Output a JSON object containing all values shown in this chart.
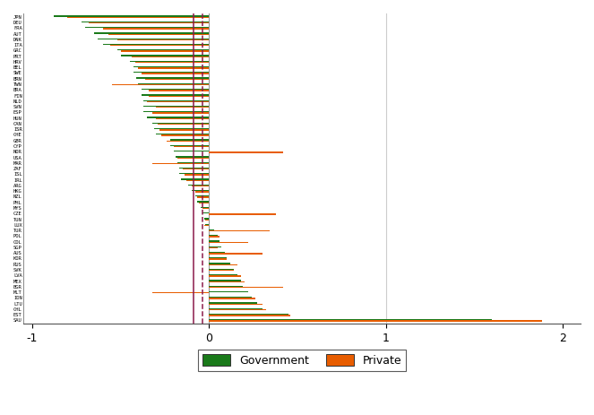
{
  "countries": [
    "JPN",
    "DEU",
    "FRA",
    "AUT",
    "DNK",
    "ITA",
    "GRC",
    "PRT",
    "HRV",
    "BEL",
    "SWE",
    "BRN",
    "TWN",
    "BRA",
    "FIN",
    "NLD",
    "SVN",
    "ESP",
    "HUN",
    "CAN",
    "ISR",
    "CHE",
    "GBR",
    "CYP",
    "NOR",
    "USA",
    "MAR",
    "ZAF",
    "ISL",
    "IRL",
    "ARG",
    "HKG",
    "NZL",
    "PHL",
    "MYS",
    "CZE",
    "TUN",
    "LUX",
    "TUR",
    "POL",
    "COL",
    "SGP",
    "AUS",
    "KOR",
    "RUS",
    "SVK",
    "LVA",
    "MEX",
    "BGR",
    "MLT",
    "IDN",
    "LTU",
    "CHL",
    "EST",
    "SAU"
  ],
  "gov": [
    -0.88,
    -0.72,
    -0.7,
    -0.65,
    -0.63,
    -0.6,
    -0.52,
    -0.5,
    -0.45,
    -0.43,
    -0.43,
    -0.41,
    -0.4,
    -0.38,
    -0.38,
    -0.37,
    -0.37,
    -0.37,
    -0.35,
    -0.32,
    -0.31,
    -0.3,
    -0.22,
    -0.22,
    -0.2,
    -0.19,
    -0.18,
    -0.17,
    -0.17,
    -0.16,
    -0.12,
    -0.1,
    -0.08,
    -0.07,
    -0.05,
    -0.04,
    -0.03,
    -0.02,
    0.03,
    0.05,
    0.06,
    0.07,
    0.09,
    0.1,
    0.12,
    0.14,
    0.16,
    0.18,
    0.19,
    0.22,
    0.24,
    0.27,
    0.3,
    0.45,
    1.6
  ],
  "priv": [
    -0.8,
    -0.68,
    -0.6,
    -0.57,
    -0.52,
    -0.56,
    -0.5,
    -0.44,
    -0.42,
    -0.4,
    -0.38,
    -0.36,
    -0.55,
    -0.34,
    -0.34,
    -0.35,
    -0.3,
    -0.32,
    -0.3,
    -0.29,
    -0.28,
    -0.27,
    -0.24,
    -0.2,
    0.42,
    -0.18,
    -0.32,
    -0.15,
    -0.14,
    -0.13,
    -0.1,
    -0.08,
    -0.07,
    -0.06,
    -0.04,
    0.38,
    -0.02,
    -0.03,
    0.34,
    0.06,
    0.22,
    0.05,
    0.3,
    0.1,
    0.16,
    0.14,
    0.18,
    0.2,
    0.42,
    -0.32,
    0.26,
    0.3,
    0.32,
    0.46,
    1.88
  ],
  "gov_color": "#1a7a1a",
  "priv_color": "#e85d00",
  "vline_solid": -0.09,
  "vline_dashed": -0.04,
  "xlim": [
    -1.05,
    2.1
  ],
  "bar_height": 0.38,
  "figsize": [
    6.63,
    4.63
  ],
  "dpi": 100,
  "background_color": "#ffffff",
  "grid_color": "#cccccc",
  "vline_x0_color": "#999999",
  "vline_x1_color": "#cccccc",
  "spine_color": "#888888",
  "legend_box_color": "#333333",
  "axis_label_fontsize": 9,
  "ytick_fontsize": 4.0,
  "legend_fontsize": 9
}
